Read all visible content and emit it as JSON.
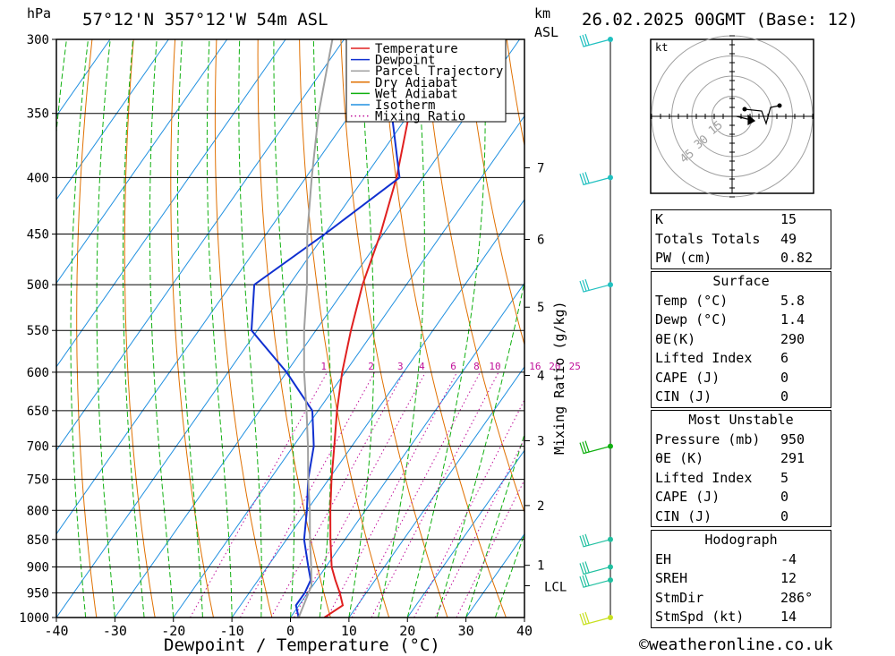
{
  "header": {
    "hpa_unit": "hPa",
    "location": "57°12'N 357°12'W 54m ASL",
    "km_unit": "km",
    "asl_unit": "ASL",
    "datetime": "26.02.2025 00GMT (Base: 12)"
  },
  "chart_data": {
    "type": "line",
    "xlabel": "Dewpoint / Temperature (°C)",
    "ylabel": "",
    "mixing_ratio_label": "Mixing Ratio (g/kg)",
    "xlim": [
      -40,
      40
    ],
    "ylim_hpa": [
      1000,
      300
    ],
    "skew_deg_per_decade": 0,
    "x_ticks": [
      "-40",
      "-30",
      "-20",
      "-10",
      "0",
      "10",
      "20",
      "30",
      "40"
    ],
    "pressure_ticks": [
      "300",
      "350",
      "400",
      "450",
      "500",
      "550",
      "600",
      "650",
      "700",
      "750",
      "800",
      "850",
      "900",
      "950",
      "1000"
    ],
    "km_ticks": [
      {
        "label": "1",
        "p": 897
      },
      {
        "label": "2",
        "p": 792
      },
      {
        "label": "3",
        "p": 692
      },
      {
        "label": "4",
        "p": 604
      },
      {
        "label": "5",
        "p": 524
      },
      {
        "label": "6",
        "p": 455
      },
      {
        "label": "7",
        "p": 392
      }
    ],
    "lcl": {
      "label": "LCL",
      "p": 936
    },
    "mixing_ratio_values": [
      "1",
      "2",
      "3",
      "4",
      "6",
      "8",
      "10",
      "16",
      "20",
      "25"
    ],
    "legend": {
      "placement": "top",
      "entries": [
        {
          "name": "Temperature",
          "color": "#e02020"
        },
        {
          "name": "Dewpoint",
          "color": "#1030d0"
        },
        {
          "name": "Parcel Trajectory",
          "color": "#a0a0a0"
        },
        {
          "name": "Dry Adiabat",
          "color": "#e07000"
        },
        {
          "name": "Wet Adiabat",
          "color": "#10b010"
        },
        {
          "name": "Isotherm",
          "color": "#2090e0"
        },
        {
          "name": "Mixing Ratio",
          "color": "#c0109a"
        }
      ]
    },
    "series": [
      {
        "name": "Temperature",
        "color": "#e02020",
        "points": [
          [
            1000,
            5.8
          ],
          [
            975,
            7.5
          ],
          [
            950,
            5.5
          ],
          [
            925,
            3.2
          ],
          [
            900,
            1.0
          ],
          [
            850,
            -2.5
          ],
          [
            800,
            -6.0
          ],
          [
            750,
            -9.5
          ],
          [
            700,
            -13.0
          ],
          [
            650,
            -16.8
          ],
          [
            600,
            -20.5
          ],
          [
            550,
            -24.0
          ],
          [
            500,
            -27.5
          ],
          [
            450,
            -30.5
          ],
          [
            400,
            -34.5
          ],
          [
            350,
            -40.0
          ],
          [
            300,
            -47.0
          ]
        ]
      },
      {
        "name": "Dewpoint",
        "color": "#1030d0",
        "points": [
          [
            1000,
            1.4
          ],
          [
            975,
            -0.5
          ],
          [
            950,
            -0.5
          ],
          [
            925,
            -1.0
          ],
          [
            900,
            -3.0
          ],
          [
            850,
            -7.0
          ],
          [
            800,
            -10.0
          ],
          [
            750,
            -13.5
          ],
          [
            700,
            -16.5
          ],
          [
            650,
            -21.0
          ],
          [
            600,
            -30.0
          ],
          [
            550,
            -41.0
          ],
          [
            500,
            -46.0
          ],
          [
            450,
            -40.0
          ],
          [
            400,
            -34.0
          ],
          [
            350,
            -43.0
          ],
          [
            300,
            -44.0
          ]
        ]
      },
      {
        "name": "Parcel Trajectory",
        "color": "#a0a0a0",
        "points": [
          [
            1000,
            1.4
          ],
          [
            936,
            -0.2
          ],
          [
            900,
            -2.5
          ],
          [
            850,
            -6.0
          ],
          [
            800,
            -9.5
          ],
          [
            750,
            -13.5
          ],
          [
            700,
            -17.5
          ],
          [
            650,
            -22.0
          ],
          [
            600,
            -27.0
          ],
          [
            550,
            -32.0
          ],
          [
            500,
            -37.0
          ],
          [
            450,
            -43.0
          ],
          [
            400,
            -49.0
          ],
          [
            350,
            -55.5
          ],
          [
            300,
            -62.0
          ]
        ]
      }
    ],
    "wind_barbs": [
      {
        "p": 1000,
        "color": "#c8e020"
      },
      {
        "p": 925,
        "color": "#20c0a0"
      },
      {
        "p": 900,
        "color": "#20c0a0"
      },
      {
        "p": 850,
        "color": "#20c0a0"
      },
      {
        "p": 700,
        "color": "#10b010"
      },
      {
        "p": 500,
        "color": "#20c0c0"
      },
      {
        "p": 400,
        "color": "#20c0c0"
      },
      {
        "p": 300,
        "color": "#20c0c0"
      }
    ]
  },
  "hodograph": {
    "unit": "kt",
    "ring_labels": [
      "15",
      "30",
      "45"
    ],
    "ring_values": [
      15,
      30,
      45,
      60
    ]
  },
  "indices": {
    "general": [
      {
        "label": "K",
        "value": "15"
      },
      {
        "label": "Totals Totals",
        "value": "49"
      },
      {
        "label": "PW (cm)",
        "value": "0.82"
      }
    ],
    "surface_title": "Surface",
    "surface": [
      {
        "label": "Temp (°C)",
        "value": "5.8"
      },
      {
        "label": "Dewp (°C)",
        "value": "1.4"
      },
      {
        "label": "θE(K)",
        "value": "290"
      },
      {
        "label": "Lifted Index",
        "value": "6"
      },
      {
        "label": "CAPE (J)",
        "value": "0"
      },
      {
        "label": "CIN (J)",
        "value": "0"
      }
    ],
    "most_unstable_title": "Most Unstable",
    "most_unstable": [
      {
        "label": "Pressure (mb)",
        "value": "950"
      },
      {
        "label": "θE (K)",
        "value": "291"
      },
      {
        "label": "Lifted Index",
        "value": "5"
      },
      {
        "label": "CAPE (J)",
        "value": "0"
      },
      {
        "label": "CIN (J)",
        "value": "0"
      }
    ],
    "hodograph_title": "Hodograph",
    "hodograph": [
      {
        "label": "EH",
        "value": "-4"
      },
      {
        "label": "SREH",
        "value": "12"
      },
      {
        "label": "StmDir",
        "value": "286°"
      },
      {
        "label": "StmSpd (kt)",
        "value": "14"
      }
    ]
  },
  "footer": {
    "credit": "©weatheronline.co.uk"
  }
}
